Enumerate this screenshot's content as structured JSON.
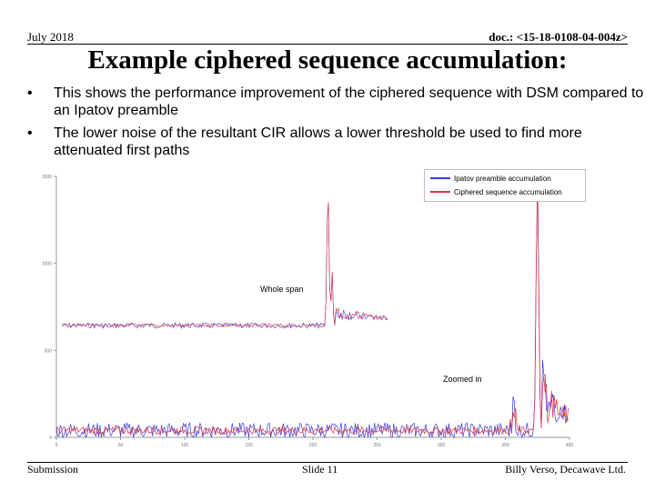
{
  "header": {
    "date": "July 2018",
    "doc": "doc.: <15-18-0108-04-004z>"
  },
  "title": "Example ciphered sequence accumulation:",
  "bullets": [
    "This shows the performance improvement of the ciphered sequence with DSM compared to an Ipatov preamble",
    "The lower noise of the resultant CIR allows a lower threshold be used to find more attenuated first paths"
  ],
  "colors": {
    "ipatov": "#3a3ad6",
    "ciphered": "#e0303a"
  },
  "chart_data": {
    "type": "line",
    "title": "",
    "xlabel": "",
    "ylabel": "",
    "xlim": [
      0,
      400
    ],
    "ylim": [
      0,
      1500
    ],
    "yticks": [
      "0",
      "500",
      "1000",
      "1500"
    ],
    "xticks": [
      "0",
      "50",
      "100",
      "150",
      "200",
      "250",
      "300",
      "350",
      "400"
    ],
    "series": [
      {
        "name": "Ipatov preamble accumulation",
        "color": "#3a3ad6"
      },
      {
        "name": "Ciphered sequence accumulation",
        "color": "#e0303a"
      }
    ],
    "annotations": [
      "Whole span",
      "Zoomed in"
    ]
  },
  "footer": {
    "left": "Submission",
    "center": "Slide 11",
    "right": "Billy Verso,  Decawave Ltd."
  }
}
